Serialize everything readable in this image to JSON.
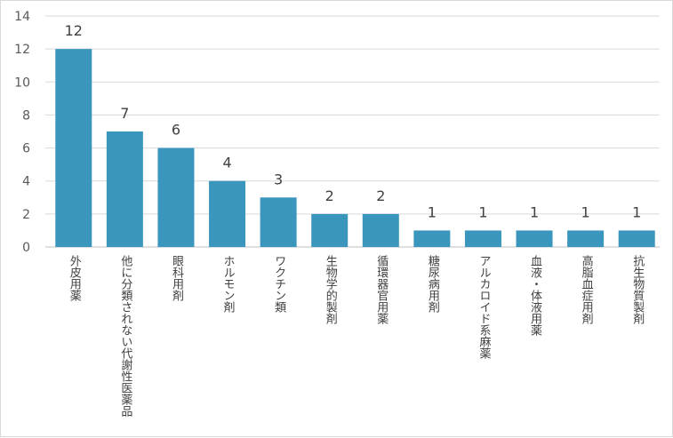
{
  "chart_data": {
    "type": "bar",
    "categories": [
      "外皮用薬",
      "他に分類されない代謝性医薬品",
      "眼科用剤",
      "ホルモン剤",
      "ワクチン類",
      "生物学的製剤",
      "循環器官用薬",
      "糖尿病用剤",
      "アルカロイド系麻薬",
      "血液・体液用薬",
      "高脂血症用剤",
      "抗生物質製剤"
    ],
    "values": [
      12,
      7,
      6,
      4,
      3,
      2,
      2,
      1,
      1,
      1,
      1,
      1
    ],
    "ylim": [
      0,
      14
    ],
    "yticks": [
      0,
      2,
      4,
      6,
      8,
      10,
      12,
      14
    ],
    "grid": true,
    "data_labels": true,
    "bar_color": "#3a96bd"
  }
}
